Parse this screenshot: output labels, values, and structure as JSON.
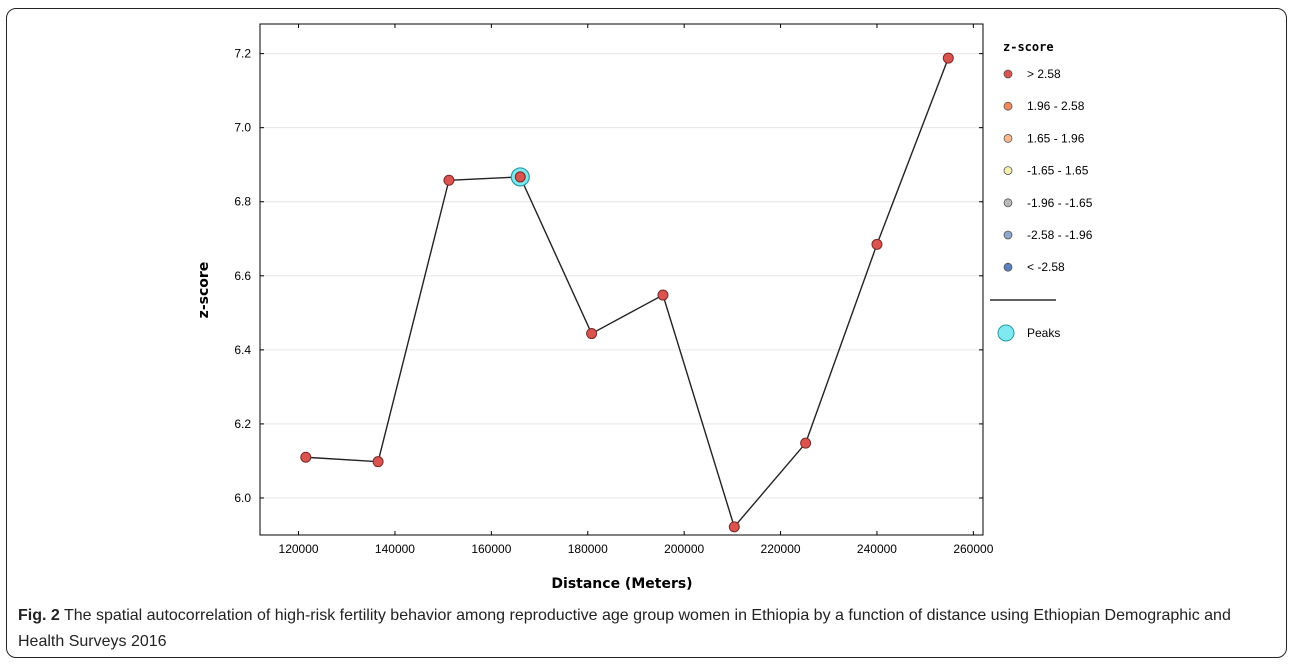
{
  "chart_data": {
    "type": "line",
    "title": "",
    "xlabel": "Distance (Meters)",
    "ylabel": "z-score",
    "xlim": [
      112000,
      262000
    ],
    "ylim": [
      5.9,
      7.28
    ],
    "xticks": [
      120000,
      140000,
      160000,
      180000,
      200000,
      220000,
      240000,
      260000
    ],
    "yticks": [
      "6.0",
      "6.2",
      "6.4",
      "6.6",
      "6.8",
      "7.0",
      "7.2"
    ],
    "grid": "horizontal",
    "legend_position": "right",
    "line_color": "#222222",
    "points": [
      {
        "x": 121500,
        "y": 6.11
      },
      {
        "x": 136500,
        "y": 6.098
      },
      {
        "x": 151200,
        "y": 6.858
      },
      {
        "x": 166000,
        "y": 6.867
      },
      {
        "x": 180800,
        "y": 6.444
      },
      {
        "x": 195600,
        "y": 6.548
      },
      {
        "x": 210400,
        "y": 5.922
      },
      {
        "x": 225200,
        "y": 6.148
      },
      {
        "x": 240000,
        "y": 6.685
      },
      {
        "x": 254800,
        "y": 7.188
      }
    ],
    "peaks": [
      {
        "x": 166000,
        "y": 6.867
      }
    ],
    "point_color": "#d9534f",
    "peak_color": "#7fe9ef",
    "legend": {
      "title": "z-score",
      "items": [
        {
          "label": "> 2.58",
          "color": "#d9534f"
        },
        {
          "label": "1.96 - 2.58",
          "color": "#f08a5d"
        },
        {
          "label": "1.65 - 1.96",
          "color": "#f6b98d"
        },
        {
          "label": "-1.65 - 1.65",
          "color": "#f5f0b0"
        },
        {
          "label": "-1.96 - -1.65",
          "color": "#b8b8b8"
        },
        {
          "label": "-2.58 - -1.96",
          "color": "#8fa8cc"
        },
        {
          "label": "< -2.58",
          "color": "#5b7fbf"
        }
      ],
      "peaks_label": "Peaks"
    }
  },
  "caption": {
    "label": "Fig. 2",
    "text": " The spatial autocorrelation of high-risk fertility behavior among reproductive age group women in Ethiopia by a function of distance using Ethiopian Demographic and Health Surveys 2016"
  }
}
